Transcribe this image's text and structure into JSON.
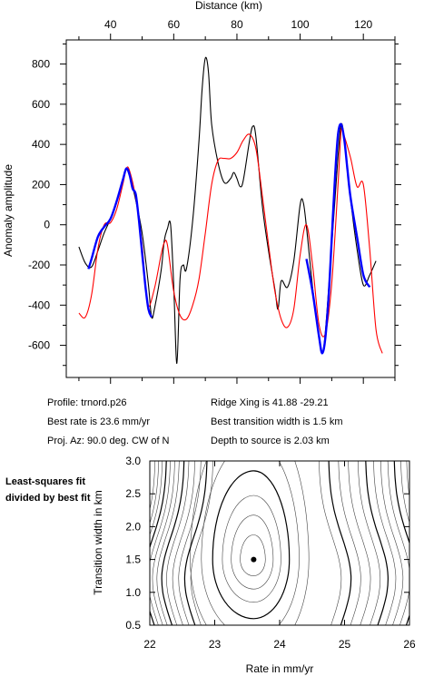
{
  "info": {
    "profile": "Profile: trnord.p26",
    "best_rate": "Best rate is 23.6 mm/yr",
    "proj_az": "Proj. Az: 90.0 deg. CW of N",
    "ridge_xing": "Ridge Xing is 41.88 -29.21",
    "best_width": "Best transition width is 1.5 km",
    "depth": "Depth to source is   2.03 km"
  },
  "side_note": "Least-squares fit divided by best fit",
  "chart_data": [
    {
      "type": "line",
      "xlabel": "Distance (km)",
      "ylabel": "Anomaly amplitude",
      "xlim": [
        26,
        130
      ],
      "ylim": [
        -760,
        920
      ],
      "xticks": [
        40,
        60,
        80,
        100,
        120
      ],
      "yticks": [
        -600,
        -400,
        -200,
        0,
        200,
        400,
        600,
        800
      ],
      "grid": false,
      "series": [
        {
          "color": "#000000",
          "x": [
            30,
            32,
            34,
            36,
            38,
            40,
            42,
            44,
            45,
            46,
            47,
            48,
            50,
            52,
            53,
            54,
            56,
            57,
            58,
            59,
            60,
            61,
            62,
            63,
            64,
            66,
            68,
            69,
            70,
            71,
            72,
            74,
            76,
            78,
            79,
            80,
            81,
            82,
            84,
            85,
            86,
            88,
            90,
            92,
            93,
            94,
            96,
            98,
            100,
            101,
            102,
            104,
            106,
            107,
            108,
            110,
            112,
            113,
            114,
            116,
            118,
            120,
            122,
            124
          ],
          "y": [
            -110,
            -190,
            -210,
            -130,
            -40,
            30,
            120,
            230,
            280,
            250,
            190,
            120,
            -40,
            -300,
            -460,
            -410,
            -230,
            -80,
            -20,
            0,
            -300,
            -690,
            -270,
            -200,
            -220,
            20,
            420,
            680,
            830,
            760,
            500,
            310,
            210,
            230,
            260,
            230,
            190,
            220,
            420,
            490,
            440,
            100,
            -130,
            -320,
            -420,
            -280,
            -310,
            -180,
            100,
            110,
            -10,
            -320,
            -560,
            -640,
            -530,
            -100,
            340,
            500,
            420,
            120,
            -120,
            -300,
            -250,
            -180
          ]
        },
        {
          "color": "#ff0000",
          "x": [
            30,
            32,
            34,
            36,
            38,
            40,
            42,
            44,
            45,
            46,
            48,
            50,
            51,
            52,
            54,
            56,
            57,
            58,
            60,
            62,
            64,
            66,
            68,
            70,
            72,
            74,
            76,
            78,
            80,
            82,
            84,
            86,
            88,
            90,
            92,
            94,
            96,
            98,
            100,
            102,
            104,
            106,
            108,
            110,
            112,
            113,
            114,
            116,
            118,
            120,
            122,
            124,
            126
          ],
          "y": [
            -440,
            -460,
            -350,
            -120,
            0,
            10,
            80,
            210,
            280,
            270,
            130,
            -100,
            -300,
            -410,
            -310,
            -150,
            -90,
            -100,
            -330,
            -450,
            -470,
            -400,
            -270,
            -40,
            200,
            320,
            330,
            330,
            360,
            420,
            450,
            380,
            150,
            -100,
            -330,
            -470,
            -510,
            -420,
            -150,
            0,
            -210,
            -500,
            -540,
            -290,
            200,
            470,
            440,
            330,
            190,
            200,
            -120,
            -520,
            -640
          ]
        },
        {
          "color": "#0000ff",
          "x": [
            33,
            34,
            36,
            38,
            40,
            42,
            44,
            45,
            46,
            47,
            48,
            49,
            50,
            51,
            52,
            53
          ],
          "y": [
            -220,
            -170,
            -60,
            -10,
            30,
            120,
            230,
            280,
            250,
            180,
            150,
            20,
            -140,
            -300,
            -420,
            -460
          ]
        },
        {
          "color": "#0000ff",
          "x": [
            102,
            104,
            106,
            107,
            108,
            109,
            110,
            111,
            112,
            113,
            114,
            115,
            116,
            118,
            120,
            122
          ],
          "y": [
            -170,
            -340,
            -560,
            -640,
            -560,
            -360,
            -70,
            230,
            450,
            500,
            420,
            270,
            130,
            -60,
            -250,
            -310
          ]
        }
      ]
    },
    {
      "type": "contour",
      "xlabel": "Rate in mm/yr",
      "ylabel": "Transition width in km",
      "xlim": [
        22,
        26
      ],
      "ylim": [
        0.5,
        3.0
      ],
      "xticks": [
        "22",
        "23",
        "24",
        "25",
        "26"
      ],
      "yticks": [
        "0.5",
        "1.0",
        "1.5",
        "2.0",
        "2.5",
        "3.0"
      ],
      "best_fit": {
        "x": 23.6,
        "y": 1.5
      },
      "grid": false
    }
  ]
}
